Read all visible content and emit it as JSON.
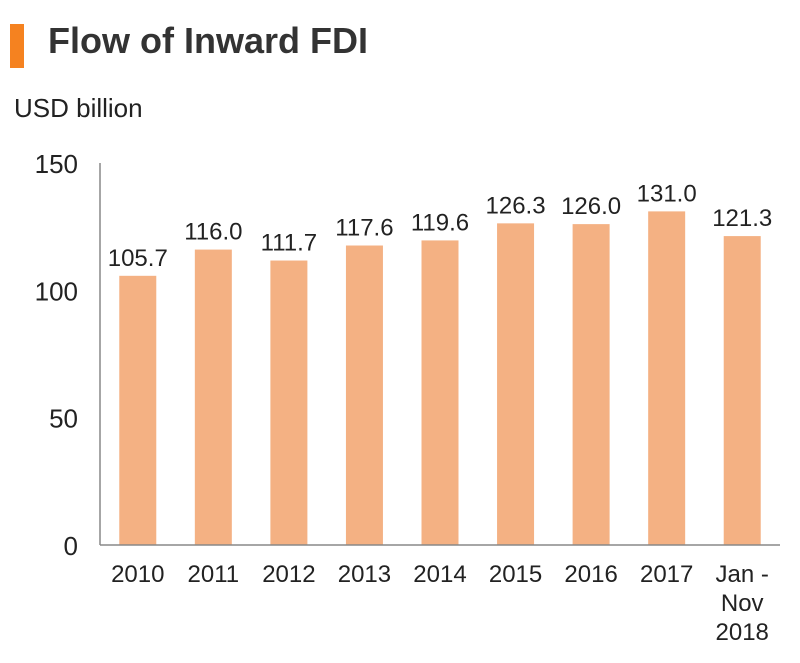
{
  "colors": {
    "accent": "#F58220",
    "bar": "#F4B183",
    "axis": "#888888",
    "text": "#222222"
  },
  "chart_data": {
    "type": "bar",
    "title": "Flow of Inward FDI",
    "ylabel": "USD billion",
    "xlabel": "",
    "ylim": [
      0,
      150
    ],
    "yticks": [
      0,
      50,
      100,
      150
    ],
    "grid": false,
    "legend": "none",
    "categories": [
      [
        "2010"
      ],
      [
        "2011"
      ],
      [
        "2012"
      ],
      [
        "2013"
      ],
      [
        "2014"
      ],
      [
        "2015"
      ],
      [
        "2016"
      ],
      [
        "2017"
      ],
      [
        "Jan -",
        "Nov",
        "2018"
      ]
    ],
    "values": [
      105.7,
      116.0,
      111.7,
      117.6,
      119.6,
      126.3,
      126.0,
      131.0,
      121.3
    ],
    "value_labels": [
      "105.7",
      "116.0",
      "111.7",
      "117.6",
      "119.6",
      "126.3",
      "126.0",
      "131.0",
      "121.3"
    ]
  }
}
